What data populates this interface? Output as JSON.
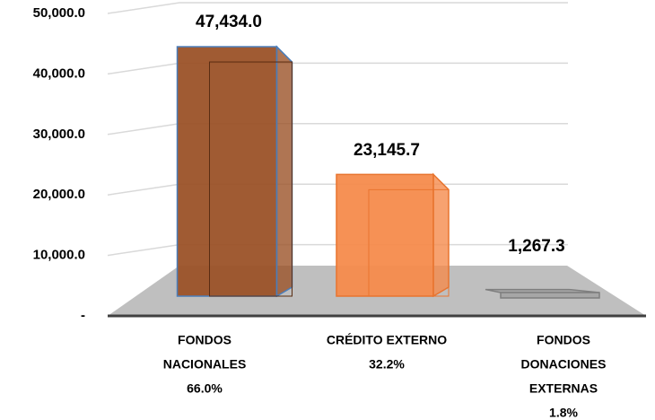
{
  "chart_data": {
    "type": "bar3d",
    "categories": [
      [
        "FONDOS",
        "NACIONALES",
        "66.0%"
      ],
      [
        "CRÉDITO  EXTERNO",
        "32.2%"
      ],
      [
        "FONDOS",
        "DONACIONES",
        "EXTERNAS",
        "1.8%"
      ]
    ],
    "values": [
      47434.0,
      23145.7,
      1267.3
    ],
    "value_labels": [
      "47,434.0",
      "23,145.7",
      "1,267.3"
    ],
    "colors": [
      "#9b5228",
      "#f58b4c",
      "#a6a6a6"
    ],
    "edge_colors": [
      "#4a7ebb",
      "#e8742f",
      "#7f7f7f"
    ],
    "ylim": [
      0,
      50000
    ],
    "yticks": [
      {
        "value": 0,
        "label": "-"
      },
      {
        "value": 10000,
        "label": "10,000.0"
      },
      {
        "value": 20000,
        "label": "20,000.0"
      },
      {
        "value": 30000,
        "label": "30,000.0"
      },
      {
        "value": 40000,
        "label": "40,000.0"
      },
      {
        "value": 50000,
        "label": "50,000.0"
      }
    ],
    "grid": true
  }
}
